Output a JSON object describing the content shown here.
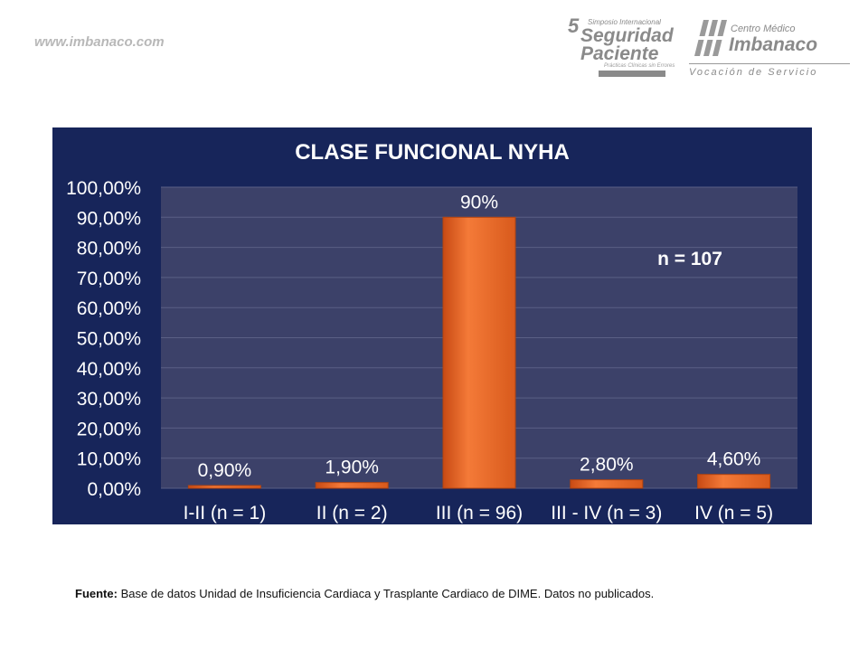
{
  "header": {
    "site_url": "www.imbanaco.com",
    "symposium_logo": {
      "number": "5",
      "line1": "Simposio Internacional",
      "line2": "Seguridad",
      "line3": "Paciente",
      "line4": "Prácticas Clínicas sin Errores"
    },
    "center_logo": {
      "name1": "Centro Médico",
      "name2": "Imbanaco",
      "tagline": "Vocación de Servicio"
    }
  },
  "colors": {
    "panel_bg": "#17255a",
    "plot_bg": "#3c4169",
    "bar": "#f07030",
    "text": "#ffffff"
  },
  "chart_data": {
    "type": "bar",
    "title": "CLASE FUNCIONAL NYHA",
    "categories": [
      "I-II (n = 1)",
      "II (n = 2)",
      "III (n = 96)",
      "III - IV (n = 3)",
      "IV (n = 5)"
    ],
    "values": [
      0.9,
      1.9,
      90,
      2.8,
      4.6
    ],
    "data_labels": [
      "0,90%",
      "1,90%",
      "90%",
      "2,80%",
      "4,60%"
    ],
    "ylim": [
      0,
      100
    ],
    "yticks": [
      "0,00%",
      "10,00%",
      "20,00%",
      "30,00%",
      "40,00%",
      "50,00%",
      "60,00%",
      "70,00%",
      "80,00%",
      "90,00%",
      "100,00%"
    ],
    "annotation": "n = 107",
    "grid": true,
    "xlabel": "",
    "ylabel": ""
  },
  "footer": {
    "source_label": "Fuente:",
    "source_text": " Base de datos Unidad de Insuficiencia Cardiaca y Trasplante Cardiaco de DIME. Datos no publicados."
  }
}
